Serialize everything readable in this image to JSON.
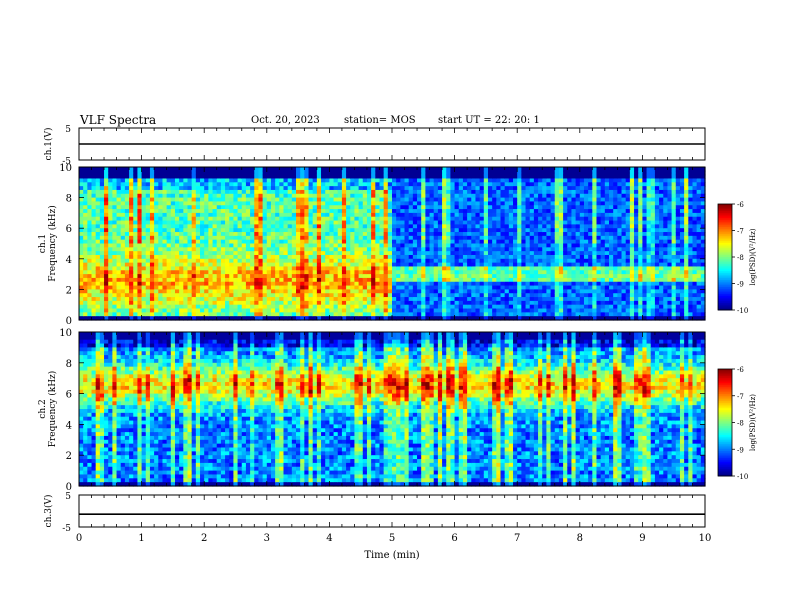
{
  "header": {
    "title": "VLF Spectra",
    "date": "Oct. 20, 2023",
    "station": "station= MOS",
    "start": "start UT =  22: 20: 1"
  },
  "chart_data": [
    {
      "type": "line",
      "panel": "ch1-voltage",
      "ylabel": "ch.1(V)",
      "yticks": [
        5,
        -5
      ],
      "ylim": [
        -5,
        5
      ],
      "x": [
        0,
        10
      ],
      "y": [
        0,
        0
      ]
    },
    {
      "type": "heatmap",
      "panel": "ch1-spectrogram",
      "ylabel": "ch.1\nFrequency (kHz)",
      "ylabel_lines": [
        "ch.1",
        "Frequency (kHz)"
      ],
      "ylim": [
        0,
        10
      ],
      "yticks": [
        0,
        2,
        4,
        6,
        8,
        10
      ],
      "colorbar": {
        "label": "log(PSD)(V²/Hz)",
        "ticks": [
          -6,
          -7,
          -8,
          -9,
          -10
        ],
        "range": [
          -10,
          -6
        ]
      }
    },
    {
      "type": "heatmap",
      "panel": "ch2-spectrogram",
      "ylabel": "ch.2\nFrequency (kHz)",
      "ylabel_lines": [
        "ch.2",
        "Frequency (kHz)"
      ],
      "ylim": [
        0,
        10
      ],
      "yticks": [
        0,
        2,
        4,
        6,
        8,
        10
      ],
      "colorbar": {
        "label": "log(PSD)(V²/Hz)",
        "ticks": [
          -6,
          -7,
          -8,
          -9,
          -10
        ],
        "range": [
          -10,
          -6
        ]
      }
    },
    {
      "type": "line",
      "panel": "ch3-voltage",
      "ylabel": "ch.3(V)",
      "yticks": [
        5,
        -5
      ],
      "ylim": [
        -5,
        5
      ],
      "x": [
        0,
        10
      ],
      "y": [
        -1,
        -1
      ]
    }
  ],
  "xaxis": {
    "label": "Time (min)",
    "range": [
      0,
      10
    ],
    "ticks": [
      0,
      1,
      2,
      3,
      4,
      5,
      6,
      7,
      8,
      9,
      10
    ]
  }
}
